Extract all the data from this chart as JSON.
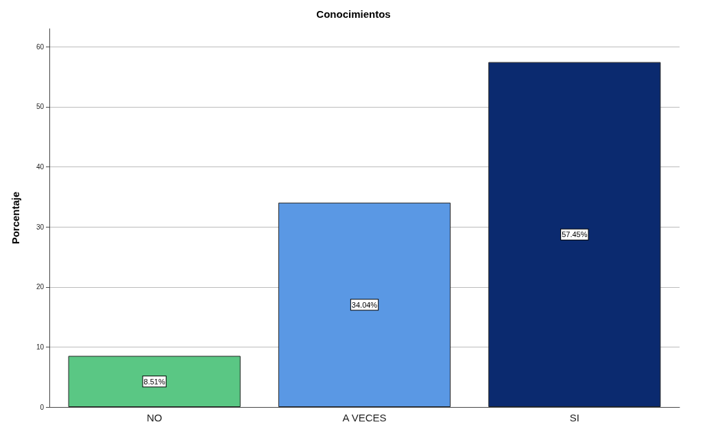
{
  "chart_data": {
    "type": "bar",
    "title": "Conocimientos",
    "ylabel": "Porcentaje",
    "categories": [
      "NO",
      "A VECES",
      "SI"
    ],
    "values": [
      8.51,
      34.04,
      57.45
    ],
    "colors": [
      "#5ac784",
      "#5a98e4",
      "#0b2a6f"
    ],
    "value_labels": [
      "8.51%",
      "34.04%",
      "57.45%"
    ],
    "ylim": [
      0,
      63
    ],
    "yticks": [
      0,
      10,
      20,
      30,
      40,
      50,
      60
    ],
    "grid": "y"
  }
}
